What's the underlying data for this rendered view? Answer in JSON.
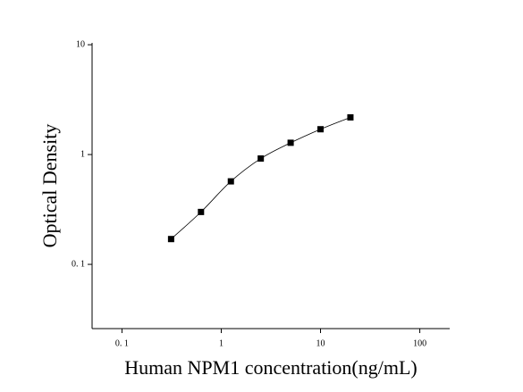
{
  "chart_data": {
    "type": "scatter",
    "x_label": "Human NPM1 concentration(ng/mL)",
    "y_label": "Optical Density",
    "x": [
      0.3125,
      0.625,
      1.25,
      2.5,
      5,
      10,
      20
    ],
    "values": [
      0.17,
      0.3,
      0.57,
      0.92,
      1.28,
      1.7,
      2.18
    ],
    "color": "#000000",
    "x_log": true,
    "y_log": true,
    "xlim": [
      0.05,
      200
    ],
    "ylim": [
      0.026,
      10.4
    ],
    "xticks": [
      {
        "value": 0.1,
        "label": "0. 1"
      },
      1,
      10,
      100
    ],
    "yticks": [
      {
        "value": 0.1,
        "label": "0. 1"
      },
      1,
      10
    ],
    "fit_line": true
  }
}
